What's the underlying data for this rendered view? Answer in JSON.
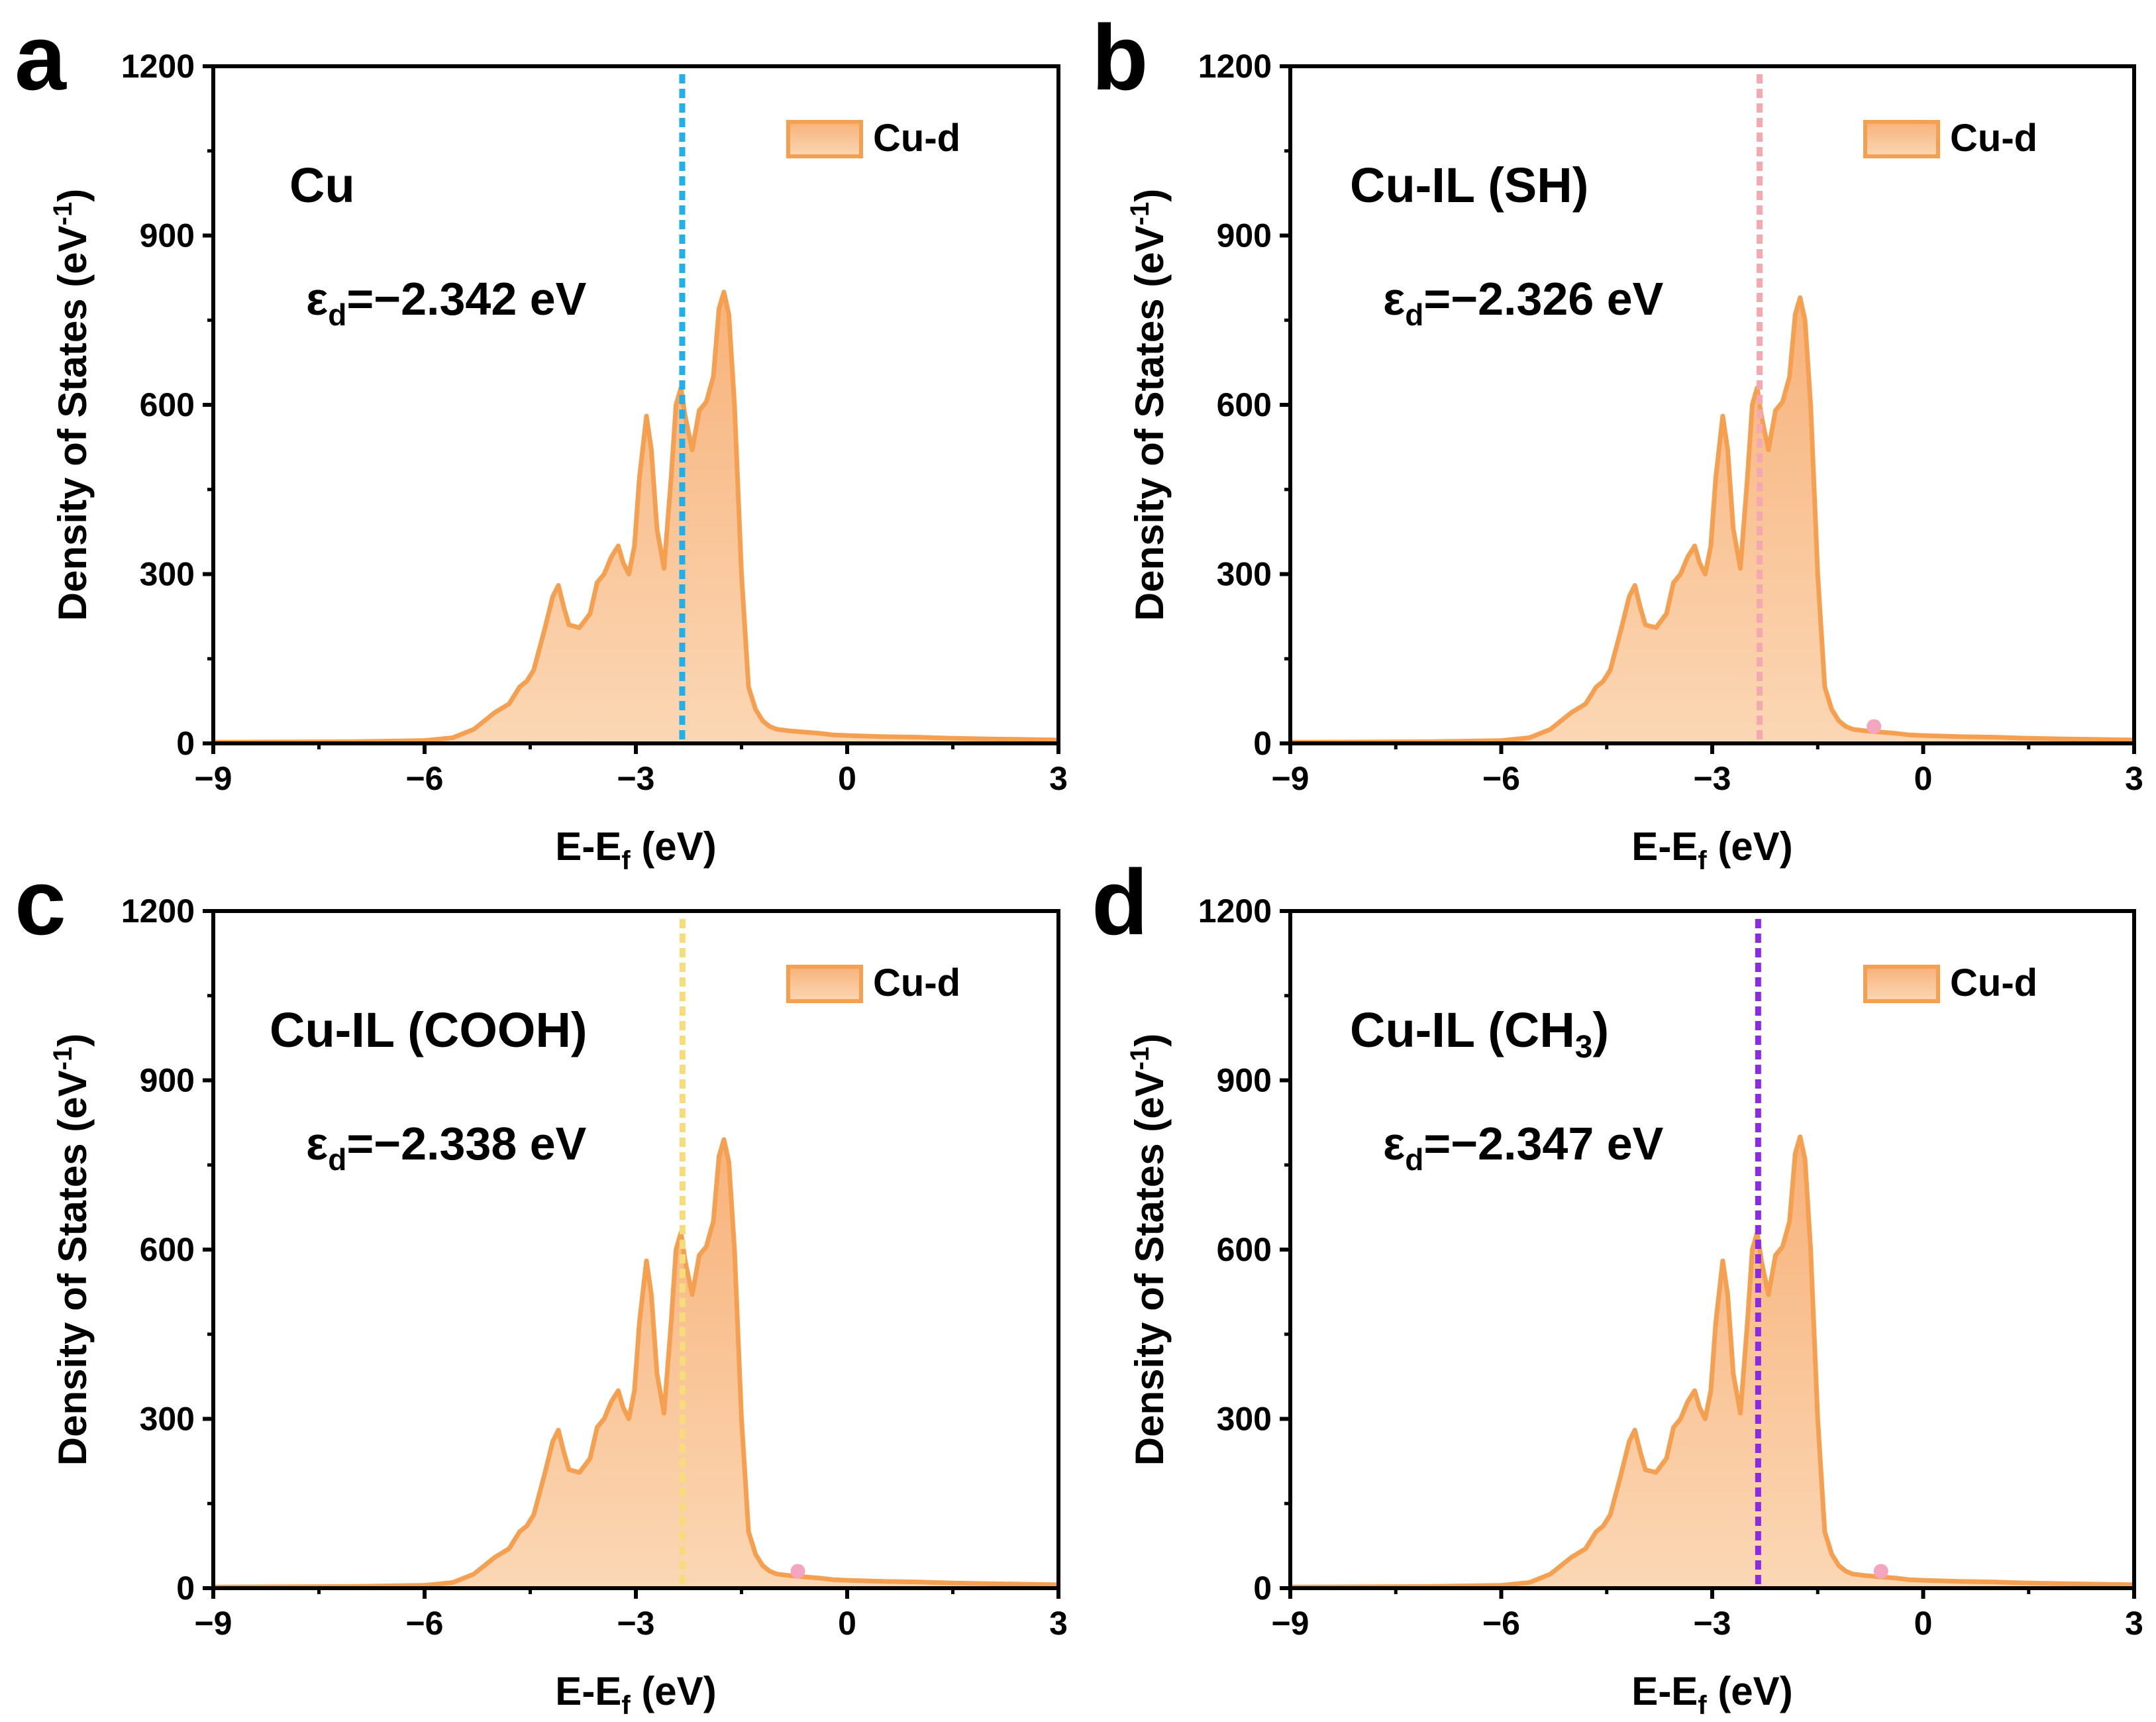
{
  "figure": {
    "description_note": "Four-panel projected density of states (Cu-d) figure",
    "fill_color": "#f9c08f",
    "line_color": "#f5a050",
    "marker_color": "#f4a6c0"
  },
  "chart_data": [
    {
      "type": "area",
      "panel_label": "a",
      "sample_label": "Cu",
      "epsilon_prefix": "ε",
      "epsilon_sub": "d",
      "epsilon_text": "=−2.342 eV",
      "d_band_center": -2.342,
      "dashed_line_color": "#22aee6",
      "ylabel": "Density of States (eV",
      "ylabel_sup": "-1",
      "ylabel_close": ")",
      "xlabel": "E-E",
      "xlabel_sub": "f",
      "xlabel_close": " (eV)",
      "legend": "Cu-d",
      "xlim": [
        -9,
        3
      ],
      "ylim": [
        0,
        1200
      ],
      "xticks": [
        -9,
        -6,
        -3,
        0,
        3
      ],
      "xtick_labels": [
        "−9",
        "−6",
        "−3",
        "0",
        "3"
      ],
      "yticks": [
        0,
        300,
        600,
        900,
        1200
      ],
      "ytick_labels": [
        "0",
        "300",
        "600",
        "900",
        "1200"
      ],
      "marker": null,
      "x": [
        -9,
        -7,
        -6,
        -5.6,
        -5.3,
        -5.0,
        -4.8,
        -4.65,
        -4.55,
        -4.45,
        -4.3,
        -4.18,
        -4.1,
        -4.02,
        -3.95,
        -3.8,
        -3.65,
        -3.55,
        -3.45,
        -3.35,
        -3.25,
        -3.18,
        -3.1,
        -3.02,
        -2.95,
        -2.85,
        -2.78,
        -2.7,
        -2.6,
        -2.5,
        -2.43,
        -2.36,
        -2.3,
        -2.2,
        -2.1,
        -2.0,
        -1.9,
        -1.82,
        -1.75,
        -1.68,
        -1.6,
        -1.5,
        -1.4,
        -1.3,
        -1.2,
        -1.1,
        -1.0,
        -0.8,
        -0.6,
        -0.4,
        -0.2,
        0,
        0.5,
        1.0,
        1.5,
        2.0,
        2.5,
        3
      ],
      "y": [
        2,
        3,
        5,
        10,
        25,
        55,
        70,
        100,
        110,
        130,
        200,
        260,
        280,
        240,
        210,
        205,
        230,
        285,
        300,
        330,
        350,
        320,
        300,
        350,
        470,
        580,
        520,
        380,
        310,
        470,
        600,
        630,
        580,
        520,
        590,
        605,
        650,
        770,
        800,
        760,
        600,
        300,
        100,
        60,
        40,
        30,
        25,
        22,
        20,
        18,
        15,
        14,
        12,
        11,
        9,
        8,
        7,
        6
      ]
    },
    {
      "type": "area",
      "panel_label": "b",
      "sample_label": "Cu-IL (SH)",
      "epsilon_prefix": "ε",
      "epsilon_sub": "d",
      "epsilon_text": "=−2.326 eV",
      "d_band_center": -2.326,
      "dashed_line_color": "#f4a9b0",
      "ylabel": "Density of States (eV",
      "ylabel_sup": "-1",
      "ylabel_close": ")",
      "xlabel": "E-E",
      "xlabel_sub": "f",
      "xlabel_close": " (eV)",
      "legend": "Cu-d",
      "xlim": [
        -9,
        3
      ],
      "ylim": [
        0,
        1200
      ],
      "xticks": [
        -9,
        -6,
        -3,
        0,
        3
      ],
      "xtick_labels": [
        "−9",
        "−6",
        "−3",
        "0",
        "3"
      ],
      "yticks": [
        0,
        300,
        600,
        900,
        1200
      ],
      "ytick_labels": [
        "0",
        "300",
        "600",
        "900",
        "1200"
      ],
      "marker": {
        "x": -0.7,
        "y": 30
      },
      "x": [
        -9,
        -7,
        -6,
        -5.6,
        -5.3,
        -5.0,
        -4.8,
        -4.65,
        -4.55,
        -4.45,
        -4.3,
        -4.18,
        -4.1,
        -4.02,
        -3.95,
        -3.8,
        -3.65,
        -3.55,
        -3.45,
        -3.35,
        -3.25,
        -3.18,
        -3.1,
        -3.02,
        -2.95,
        -2.85,
        -2.78,
        -2.7,
        -2.6,
        -2.5,
        -2.43,
        -2.36,
        -2.3,
        -2.2,
        -2.1,
        -2.0,
        -1.9,
        -1.82,
        -1.75,
        -1.68,
        -1.6,
        -1.5,
        -1.4,
        -1.3,
        -1.2,
        -1.1,
        -1.0,
        -0.8,
        -0.6,
        -0.4,
        -0.2,
        0,
        0.5,
        1.0,
        1.5,
        2.0,
        2.5,
        3
      ],
      "y": [
        2,
        3,
        5,
        10,
        25,
        55,
        70,
        100,
        110,
        130,
        200,
        260,
        280,
        240,
        210,
        205,
        230,
        285,
        300,
        330,
        350,
        320,
        300,
        350,
        470,
        580,
        520,
        380,
        310,
        470,
        600,
        630,
        580,
        520,
        590,
        605,
        650,
        760,
        790,
        750,
        600,
        300,
        100,
        60,
        40,
        30,
        25,
        22,
        20,
        18,
        15,
        14,
        12,
        11,
        9,
        8,
        7,
        6
      ]
    },
    {
      "type": "area",
      "panel_label": "c",
      "sample_label": "Cu-IL (COOH)",
      "epsilon_prefix": "ε",
      "epsilon_sub": "d",
      "epsilon_text": "=−2.338 eV",
      "d_band_center": -2.338,
      "dashed_line_color": "#f6dc7a",
      "ylabel": "Density of States (eV",
      "ylabel_sup": "-1",
      "ylabel_close": ")",
      "xlabel": "E-E",
      "xlabel_sub": "f",
      "xlabel_close": " (eV)",
      "legend": "Cu-d",
      "xlim": [
        -9,
        3
      ],
      "ylim": [
        0,
        1200
      ],
      "xticks": [
        -9,
        -6,
        -3,
        0,
        3
      ],
      "xtick_labels": [
        "−9",
        "−6",
        "−3",
        "0",
        "3"
      ],
      "yticks": [
        0,
        300,
        600,
        900,
        1200
      ],
      "ytick_labels": [
        "0",
        "300",
        "600",
        "900",
        "1200"
      ],
      "marker": {
        "x": -0.7,
        "y": 30
      },
      "x": [
        -9,
        -7,
        -6,
        -5.6,
        -5.3,
        -5.0,
        -4.8,
        -4.65,
        -4.55,
        -4.45,
        -4.3,
        -4.18,
        -4.1,
        -4.02,
        -3.95,
        -3.8,
        -3.65,
        -3.55,
        -3.45,
        -3.35,
        -3.25,
        -3.18,
        -3.1,
        -3.02,
        -2.95,
        -2.85,
        -2.78,
        -2.7,
        -2.6,
        -2.5,
        -2.43,
        -2.36,
        -2.3,
        -2.2,
        -2.1,
        -2.0,
        -1.9,
        -1.82,
        -1.75,
        -1.68,
        -1.6,
        -1.5,
        -1.4,
        -1.3,
        -1.2,
        -1.1,
        -1.0,
        -0.8,
        -0.6,
        -0.4,
        -0.2,
        0,
        0.5,
        1.0,
        1.5,
        2.0,
        2.5,
        3
      ],
      "y": [
        2,
        3,
        5,
        10,
        25,
        55,
        70,
        100,
        110,
        130,
        200,
        260,
        280,
        240,
        210,
        205,
        230,
        285,
        300,
        330,
        350,
        320,
        300,
        350,
        470,
        580,
        520,
        380,
        310,
        470,
        600,
        630,
        580,
        520,
        590,
        605,
        650,
        765,
        795,
        755,
        600,
        300,
        100,
        60,
        40,
        30,
        25,
        22,
        20,
        18,
        15,
        14,
        12,
        11,
        9,
        8,
        7,
        6
      ]
    },
    {
      "type": "area",
      "panel_label": "d",
      "sample_label": "Cu-IL (CH",
      "sample_label_sub": "3",
      "sample_label_close": ")",
      "epsilon_prefix": "ε",
      "epsilon_sub": "d",
      "epsilon_text": "=−2.347 eV",
      "d_band_center": -2.347,
      "dashed_line_color": "#8a2be2",
      "ylabel": "Density of States (eV",
      "ylabel_sup": "-1",
      "ylabel_close": ")",
      "xlabel": "E-E",
      "xlabel_sub": "f",
      "xlabel_close": " (eV)",
      "legend": "Cu-d",
      "xlim": [
        -9,
        3
      ],
      "ylim": [
        0,
        1200
      ],
      "xticks": [
        -9,
        -6,
        -3,
        0,
        3
      ],
      "xtick_labels": [
        "−9",
        "−6",
        "−3",
        "0",
        "3"
      ],
      "yticks": [
        0,
        300,
        600,
        900,
        1200
      ],
      "ytick_labels": [
        "0",
        "300",
        "600",
        "900",
        "1200"
      ],
      "marker": {
        "x": -0.6,
        "y": 30
      },
      "x": [
        -9,
        -7,
        -6,
        -5.6,
        -5.3,
        -5.0,
        -4.8,
        -4.65,
        -4.55,
        -4.45,
        -4.3,
        -4.18,
        -4.1,
        -4.02,
        -3.95,
        -3.8,
        -3.65,
        -3.55,
        -3.45,
        -3.35,
        -3.25,
        -3.18,
        -3.1,
        -3.02,
        -2.95,
        -2.85,
        -2.78,
        -2.7,
        -2.6,
        -2.5,
        -2.43,
        -2.36,
        -2.3,
        -2.2,
        -2.1,
        -2.0,
        -1.9,
        -1.82,
        -1.75,
        -1.68,
        -1.6,
        -1.5,
        -1.4,
        -1.3,
        -1.2,
        -1.1,
        -1.0,
        -0.8,
        -0.6,
        -0.4,
        -0.2,
        0,
        0.5,
        1.0,
        1.5,
        2.0,
        2.5,
        3
      ],
      "y": [
        2,
        3,
        5,
        10,
        25,
        55,
        70,
        100,
        110,
        130,
        200,
        260,
        280,
        240,
        210,
        205,
        230,
        285,
        300,
        330,
        350,
        320,
        300,
        350,
        470,
        580,
        520,
        380,
        310,
        470,
        600,
        630,
        580,
        520,
        590,
        605,
        650,
        770,
        800,
        760,
        600,
        300,
        100,
        60,
        40,
        30,
        25,
        22,
        20,
        18,
        15,
        14,
        12,
        11,
        9,
        8,
        7,
        6
      ]
    }
  ]
}
